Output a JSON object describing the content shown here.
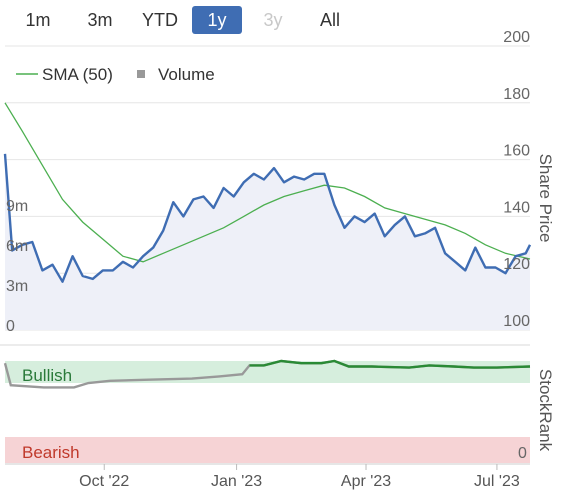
{
  "ranges": [
    {
      "label": "1m",
      "state": "normal"
    },
    {
      "label": "3m",
      "state": "normal"
    },
    {
      "label": "YTD",
      "state": "normal"
    },
    {
      "label": "1y",
      "state": "active"
    },
    {
      "label": "3y",
      "state": "disabled"
    },
    {
      "label": "All",
      "state": "normal"
    }
  ],
  "legend": {
    "sma_label": "SMA (50)",
    "volume_label": "Volume"
  },
  "colors": {
    "price": "#3f6db3",
    "sma": "#4caf50",
    "volume": "#d0d0d4",
    "bullish_band": "#d6eedd",
    "bearish_band": "#f6d3d5",
    "bullish_text": "#2a7a3a",
    "bearish_text": "#c0392b",
    "stockrank_line": "#999999",
    "stockrank_bullish": "#2a8a35",
    "price_area": "#eef0f8",
    "active_button": "#3f6db3"
  },
  "chart_data": [
    {
      "type": "line",
      "ylabel": "Share Price",
      "ylim": [
        100,
        200
      ],
      "y_ticks": [
        "100",
        "120",
        "140",
        "160",
        "180",
        "200"
      ],
      "volume_ticks": [
        "0",
        "3m",
        "6m",
        "9m"
      ],
      "volume_ylim": [
        0,
        12000000
      ],
      "x_ticks": [
        "Oct '22",
        "Jan '23",
        "Apr '23",
        "Jul '23"
      ],
      "x_tick_dates": [
        "2022-10-01",
        "2023-01-01",
        "2023-04-01",
        "2023-07-01"
      ],
      "xlim": [
        "2022-07-24",
        "2023-07-24"
      ],
      "series": [
        {
          "name": "Price",
          "x": [
            "2022-07-24",
            "2022-07-29",
            "2022-08-05",
            "2022-08-12",
            "2022-08-19",
            "2022-08-26",
            "2022-09-02",
            "2022-09-09",
            "2022-09-16",
            "2022-09-23",
            "2022-09-30",
            "2022-10-07",
            "2022-10-14",
            "2022-10-21",
            "2022-10-28",
            "2022-11-04",
            "2022-11-11",
            "2022-11-18",
            "2022-11-25",
            "2022-12-02",
            "2022-12-09",
            "2022-12-16",
            "2022-12-23",
            "2022-12-30",
            "2023-01-06",
            "2023-01-13",
            "2023-01-20",
            "2023-01-27",
            "2023-02-03",
            "2023-02-10",
            "2023-02-17",
            "2023-02-24",
            "2023-03-03",
            "2023-03-10",
            "2023-03-17",
            "2023-03-24",
            "2023-03-31",
            "2023-04-07",
            "2023-04-14",
            "2023-04-21",
            "2023-04-28",
            "2023-05-05",
            "2023-05-12",
            "2023-05-19",
            "2023-05-26",
            "2023-06-02",
            "2023-06-09",
            "2023-06-16",
            "2023-06-23",
            "2023-06-30",
            "2023-07-07",
            "2023-07-14",
            "2023-07-21",
            "2023-07-24"
          ],
          "y": [
            162,
            128,
            130,
            131,
            121,
            123,
            117,
            126,
            119,
            118,
            121,
            121,
            124,
            122,
            126,
            129,
            135,
            145,
            140,
            146,
            147,
            143,
            150,
            147,
            152,
            155,
            153,
            157,
            152,
            154,
            153,
            155,
            155,
            144,
            136,
            140,
            138,
            141,
            133,
            137,
            140,
            133,
            134,
            136,
            127,
            124,
            121,
            129,
            122,
            122,
            120,
            126,
            127,
            130
          ]
        },
        {
          "name": "SMA (50)",
          "x": [
            "2022-07-24",
            "2022-08-05",
            "2022-08-19",
            "2022-09-02",
            "2022-09-16",
            "2022-09-30",
            "2022-10-14",
            "2022-10-28",
            "2022-11-11",
            "2022-11-25",
            "2022-12-09",
            "2022-12-23",
            "2023-01-06",
            "2023-01-20",
            "2023-02-03",
            "2023-02-17",
            "2023-03-03",
            "2023-03-17",
            "2023-03-31",
            "2023-04-14",
            "2023-04-28",
            "2023-05-12",
            "2023-05-26",
            "2023-06-09",
            "2023-06-23",
            "2023-07-07",
            "2023-07-24"
          ],
          "y": [
            180,
            170,
            158,
            146,
            138,
            132,
            126,
            124,
            127,
            130,
            133,
            136,
            140,
            144,
            147,
            149,
            151,
            150,
            147,
            143,
            141,
            139,
            137,
            134,
            130,
            127,
            125
          ]
        }
      ]
    },
    {
      "type": "line",
      "ylabel": "StockRank",
      "ylim": [
        0,
        100
      ],
      "band_labels": {
        "bullish": "Bullish",
        "bearish": "Bearish"
      },
      "y_ticks": [
        "0"
      ],
      "series": [
        {
          "name": "StockRank",
          "x": [
            "2022-07-24",
            "2022-07-28",
            "2022-08-20",
            "2022-09-10",
            "2022-09-20",
            "2022-10-05",
            "2022-11-01",
            "2022-12-01",
            "2022-12-20",
            "2023-01-05",
            "2023-01-10",
            "2023-01-20",
            "2023-02-01",
            "2023-02-15",
            "2023-03-01",
            "2023-03-10",
            "2023-03-20",
            "2023-04-05",
            "2023-05-01",
            "2023-05-15",
            "2023-06-01",
            "2023-06-15",
            "2023-07-01",
            "2023-07-24"
          ],
          "y": [
            88,
            68,
            66,
            66,
            70,
            72,
            73,
            74,
            76,
            78,
            86,
            86,
            90,
            88,
            88,
            90,
            85,
            85,
            84,
            86,
            85,
            84,
            84,
            85
          ]
        }
      ]
    }
  ]
}
